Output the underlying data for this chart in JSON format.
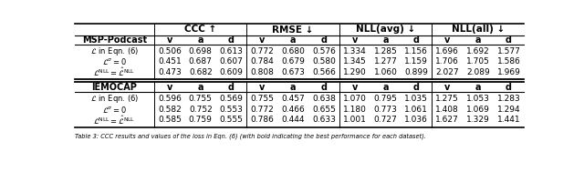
{
  "sections": [
    {
      "dataset": "MSP-Podcast",
      "rows": [
        {
          "label": "$\\mathcal{L}$ in Eqn. (6)",
          "values": [
            0.506,
            0.698,
            0.613,
            0.772,
            0.68,
            0.576,
            1.334,
            1.285,
            1.156,
            1.696,
            1.692,
            1.577
          ]
        },
        {
          "label": "$\\mathcal{L}^{\\sigma}=0$",
          "values": [
            0.451,
            0.687,
            0.607,
            0.784,
            0.679,
            0.58,
            1.345,
            1.277,
            1.159,
            1.706,
            1.705,
            1.586
          ]
        },
        {
          "label": "$\\mathcal{L}^{\\mathrm{NLL}}=\\hat{\\mathcal{L}}^{\\mathrm{NLL}}$",
          "values": [
            0.473,
            0.682,
            0.609,
            0.808,
            0.673,
            0.566,
            1.29,
            1.06,
            0.899,
            2.027,
            2.089,
            1.969
          ]
        }
      ]
    },
    {
      "dataset": "IEMOCAP",
      "rows": [
        {
          "label": "$\\mathcal{L}$ in Eqn. (6)",
          "values": [
            0.596,
            0.755,
            0.569,
            0.755,
            0.457,
            0.638,
            1.07,
            0.795,
            1.035,
            1.275,
            1.053,
            1.283
          ]
        },
        {
          "label": "$\\mathcal{L}^{\\sigma}=0$",
          "values": [
            0.582,
            0.752,
            0.553,
            0.772,
            0.466,
            0.655,
            1.18,
            0.773,
            1.061,
            1.408,
            1.069,
            1.294
          ]
        },
        {
          "label": "$\\mathcal{L}^{\\mathrm{NLL}}=\\hat{\\mathcal{L}}^{\\mathrm{NLL}}$",
          "values": [
            0.585,
            0.759,
            0.555,
            0.786,
            0.444,
            0.633,
            1.001,
            0.727,
            1.036,
            1.627,
            1.329,
            1.441
          ]
        }
      ]
    }
  ],
  "col_groups": [
    "CCC ↑",
    "RMSE ↓",
    "NLL(avg) ↓",
    "NLL(all) ↓"
  ],
  "sub_cols": [
    "v",
    "a",
    "d"
  ],
  "bg_color": "#ffffff",
  "text_color": "#000000",
  "caption": "Table 3: CCC results and values of the loss in Eqn. (6) (with bold indicating the best performance for each dataset)."
}
